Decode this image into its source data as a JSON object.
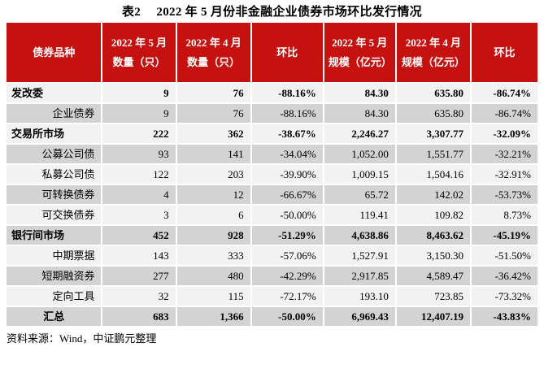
{
  "title": "表2　 2022 年 5 月份非金融企业债券市场环比发行情况",
  "source_note": "资料来源：Wind，中证鹏元整理",
  "colors": {
    "header_red": "#C5110F",
    "header_text": "#FFFFFF",
    "row_light": "#F2F2F2",
    "row_dark": "#D3D3D3",
    "gridline": "#FFFFFF"
  },
  "table": {
    "columns": [
      "债券品种",
      "2022 年 5 月数量（只）",
      "2022 年 4 月数量（只）",
      "环比",
      "2022 年 5 月规模（亿元）",
      "2022 年 4 月规模（亿元）",
      "环比"
    ],
    "rows": [
      {
        "label": "发改委",
        "style": "section",
        "values": [
          "9",
          "76",
          "-88.16%",
          "84.30",
          "635.80",
          "-86.74%"
        ]
      },
      {
        "label": "企业债券",
        "style": "sub",
        "values": [
          "9",
          "76",
          "-88.16%",
          "84.30",
          "635.80",
          "-86.74%"
        ]
      },
      {
        "label": "交易所市场",
        "style": "section",
        "values": [
          "222",
          "362",
          "-38.67%",
          "2,246.27",
          "3,307.77",
          "-32.09%"
        ]
      },
      {
        "label": "公募公司债",
        "style": "sub",
        "values": [
          "93",
          "141",
          "-34.04%",
          "1,052.00",
          "1,551.77",
          "-32.21%"
        ]
      },
      {
        "label": "私募公司债",
        "style": "sub",
        "values": [
          "122",
          "203",
          "-39.90%",
          "1,009.15",
          "1,504.16",
          "-32.91%"
        ]
      },
      {
        "label": "可转换债券",
        "style": "sub",
        "values": [
          "4",
          "12",
          "-66.67%",
          "65.72",
          "142.02",
          "-53.73%"
        ]
      },
      {
        "label": "可交换债券",
        "style": "sub",
        "values": [
          "3",
          "6",
          "-50.00%",
          "119.41",
          "109.82",
          "8.73%"
        ]
      },
      {
        "label": "银行间市场",
        "style": "section",
        "values": [
          "452",
          "928",
          "-51.29%",
          "4,638.86",
          "8,463.62",
          "-45.19%"
        ]
      },
      {
        "label": "中期票据",
        "style": "sub",
        "values": [
          "143",
          "333",
          "-57.06%",
          "1,527.91",
          "3,150.30",
          "-51.50%"
        ]
      },
      {
        "label": "短期融资券",
        "style": "sub",
        "values": [
          "277",
          "480",
          "-42.29%",
          "2,917.85",
          "4,589.47",
          "-36.42%"
        ]
      },
      {
        "label": "定向工具",
        "style": "sub",
        "values": [
          "32",
          "115",
          "-72.17%",
          "193.10",
          "723.85",
          "-73.32%"
        ]
      },
      {
        "label": "汇总",
        "style": "total",
        "values": [
          "683",
          "1,366",
          "-50.00%",
          "6,969.43",
          "12,407.19",
          "-43.83%"
        ]
      }
    ]
  }
}
